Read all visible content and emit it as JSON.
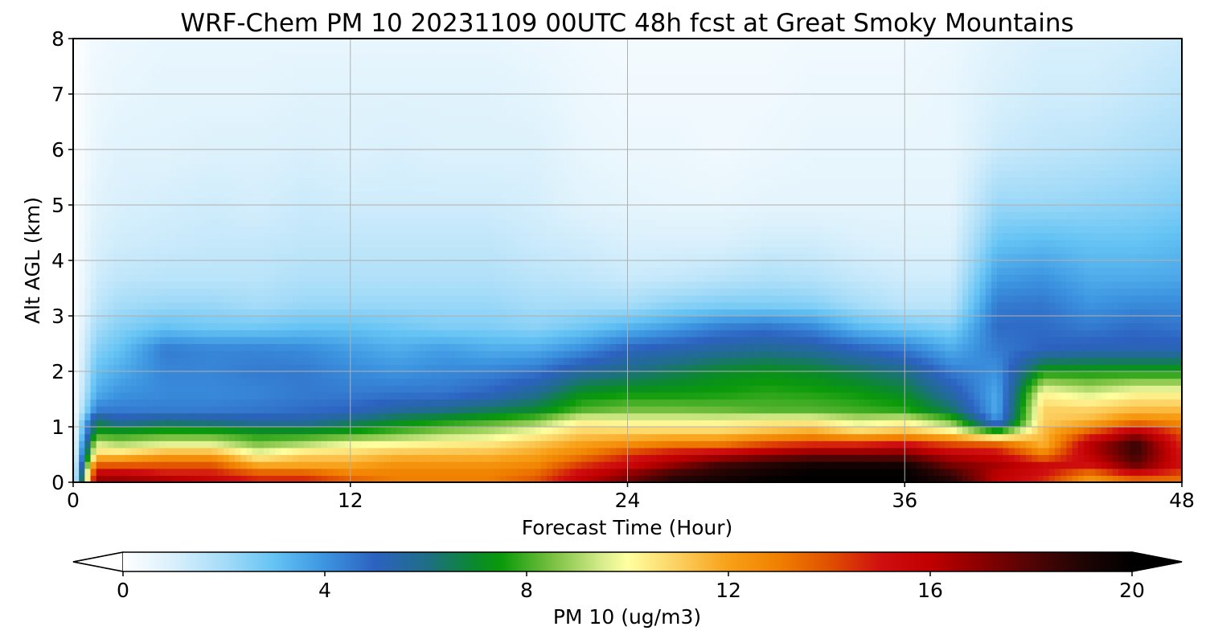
{
  "chart_data": {
    "type": "heatmap",
    "title": "WRF-Chem PM 10  20231109 00UTC 48h fcst at Great Smoky Mountains",
    "xlabel": "Forecast Time (Hour)",
    "ylabel": "Alt AGL (km)",
    "xlim": [
      0,
      48
    ],
    "ylim": [
      0,
      8
    ],
    "xticks": [
      "0",
      "12",
      "24",
      "36",
      "48"
    ],
    "yticks": [
      "0",
      "1",
      "2",
      "3",
      "4",
      "5",
      "6",
      "7",
      "8"
    ],
    "grid": true,
    "colorbar": {
      "label": "PM 10  (ug/m3)",
      "orientation": "horizontal",
      "placement": "bottom",
      "range": [
        0,
        20
      ],
      "extend": "both",
      "ticks": [
        "0",
        "4",
        "8",
        "12",
        "16",
        "20"
      ],
      "colormap_stops": [
        {
          "value": 0,
          "color": "#ffffff"
        },
        {
          "value": 1,
          "color": "#d9f0fc"
        },
        {
          "value": 2,
          "color": "#a6dcf8"
        },
        {
          "value": 3,
          "color": "#64c3f4"
        },
        {
          "value": 4,
          "color": "#3c94e0"
        },
        {
          "value": 5,
          "color": "#2c62c0"
        },
        {
          "value": 6,
          "color": "#1f6e88"
        },
        {
          "value": 7,
          "color": "#0a8a2a"
        },
        {
          "value": 7.5,
          "color": "#0a9a0a"
        },
        {
          "value": 8.5,
          "color": "#78c040"
        },
        {
          "value": 9.5,
          "color": "#d8ec8c"
        },
        {
          "value": 10,
          "color": "#ffffa0"
        },
        {
          "value": 11,
          "color": "#fcd060"
        },
        {
          "value": 12,
          "color": "#f8a018"
        },
        {
          "value": 13,
          "color": "#f08000"
        },
        {
          "value": 14,
          "color": "#e05000"
        },
        {
          "value": 15,
          "color": "#d01010"
        },
        {
          "value": 16,
          "color": "#c00000"
        },
        {
          "value": 17,
          "color": "#8a0000"
        },
        {
          "value": 18,
          "color": "#520404"
        },
        {
          "value": 19,
          "color": "#200404"
        },
        {
          "value": 20,
          "color": "#000000"
        }
      ]
    },
    "x_hours": [
      0,
      1,
      2,
      4,
      6,
      8,
      10,
      12,
      14,
      16,
      18,
      20,
      22,
      24,
      26,
      28,
      30,
      32,
      34,
      36,
      38,
      40,
      42,
      44,
      46,
      48
    ],
    "heights_km": [
      0,
      0.15,
      0.3,
      0.5,
      0.7,
      0.9,
      1.1,
      1.3,
      1.6,
      2.0,
      2.4,
      2.8,
      3.2,
      3.7,
      4.3,
      5.0,
      6.0,
      7.0,
      8.0
    ],
    "values": [
      [
        0,
        0,
        0,
        0,
        0,
        0,
        0,
        0,
        0,
        0,
        0,
        0,
        0,
        0,
        0,
        0,
        0,
        0,
        0
      ],
      [
        17,
        16,
        14,
        11,
        9.5,
        7.5,
        6.5,
        4.5,
        3.5,
        3,
        2.5,
        2,
        1.5,
        1.2,
        1,
        0.8,
        0.6,
        0.5,
        0.4
      ],
      [
        17,
        16,
        14,
        11,
        9,
        7.5,
        5.5,
        4.5,
        4,
        3.5,
        3,
        2.5,
        2,
        1.5,
        1.2,
        1,
        0.8,
        0.6,
        0.5
      ],
      [
        17,
        15,
        14,
        12,
        9.5,
        7.8,
        6,
        4.5,
        4.2,
        4.3,
        4.5,
        3,
        2.2,
        1.6,
        1.3,
        1.1,
        0.8,
        0.7,
        0.6
      ],
      [
        16,
        15,
        14,
        12,
        9.5,
        7.8,
        5.8,
        4.5,
        4.2,
        4.3,
        4.3,
        2.8,
        2.2,
        1.6,
        1.4,
        1.2,
        0.9,
        0.7,
        0.6
      ],
      [
        15,
        14,
        12,
        10,
        8.5,
        7.4,
        5.5,
        4.6,
        4.3,
        4.5,
        4.3,
        2.8,
        2,
        1.6,
        1.4,
        1.1,
        0.9,
        0.7,
        0.6
      ],
      [
        15,
        14,
        12,
        11,
        9,
        7.4,
        5.5,
        4.8,
        4.5,
        4.5,
        4.2,
        3,
        2.2,
        1.8,
        1.5,
        1.3,
        1,
        0.8,
        0.6
      ],
      [
        14,
        13,
        12,
        11,
        9.8,
        7.6,
        6.2,
        5,
        4.5,
        4.2,
        3.8,
        3,
        2.2,
        1.8,
        1.5,
        1.2,
        0.9,
        0.8,
        0.6
      ],
      [
        13,
        13,
        12.5,
        11.5,
        10,
        8.2,
        7,
        5.6,
        4.6,
        4,
        3.5,
        2.8,
        2.2,
        1.8,
        1.5,
        1.2,
        1,
        0.8,
        0.6
      ],
      [
        13,
        13,
        12.5,
        11.5,
        10.3,
        8.8,
        7.5,
        6,
        4.6,
        4.2,
        3.8,
        2.6,
        2.2,
        1.8,
        1.5,
        1.2,
        0.9,
        0.8,
        0.6
      ],
      [
        13,
        13,
        12.5,
        11.5,
        10.5,
        9.2,
        8,
        6.5,
        5,
        4.3,
        3.5,
        2.6,
        2.2,
        1.8,
        1.5,
        1.2,
        0.9,
        0.8,
        0.6
      ],
      [
        14,
        13.5,
        12.8,
        12,
        11.2,
        10,
        8.6,
        7,
        5.8,
        4.6,
        3.5,
        2.4,
        2,
        1.6,
        1.3,
        1.1,
        0.9,
        0.7,
        0.5
      ],
      [
        16,
        15.5,
        14.5,
        13,
        12,
        11,
        10.2,
        8.2,
        7.2,
        5.6,
        4.1,
        2.8,
        2,
        1.5,
        1.2,
        0.8,
        0.6,
        0.5,
        0.4
      ],
      [
        17.5,
        17,
        15.5,
        14.5,
        12.5,
        11,
        10,
        8.5,
        7.5,
        6,
        5,
        3.3,
        2,
        1.3,
        1,
        0.7,
        0.5,
        0.4,
        0.3
      ],
      [
        19,
        18.5,
        17,
        15.5,
        13,
        11,
        10,
        8.5,
        7.5,
        6.5,
        5.3,
        3.8,
        2.4,
        1.4,
        1,
        0.6,
        0.5,
        0.4,
        0.3
      ],
      [
        19.5,
        19,
        18.5,
        16,
        13,
        11,
        10,
        8.4,
        7.6,
        7,
        5.6,
        4.4,
        2.6,
        1.6,
        1,
        0.6,
        0.4,
        0.4,
        0.3
      ],
      [
        20,
        19.5,
        19,
        17,
        14,
        11.5,
        10.3,
        8.2,
        7.8,
        7.2,
        5.8,
        4.6,
        2.6,
        1.8,
        1.2,
        0.7,
        0.5,
        0.4,
        0.3
      ],
      [
        20,
        20,
        19.5,
        17.5,
        14.5,
        12,
        10.3,
        8.2,
        7.7,
        7,
        5.6,
        4.2,
        2.5,
        1.7,
        1.2,
        0.7,
        0.6,
        0.5,
        0.4
      ],
      [
        20,
        20,
        19.5,
        17.5,
        14.5,
        11,
        9.5,
        8,
        7.5,
        6.5,
        5,
        3.2,
        2,
        1.4,
        1,
        0.7,
        0.6,
        0.5,
        0.4
      ],
      [
        20,
        20,
        19.5,
        17.5,
        15,
        11.5,
        10,
        7.8,
        7,
        6,
        4.5,
        2.8,
        1.6,
        1.2,
        0.9,
        0.7,
        0.6,
        0.5,
        0.4
      ],
      [
        19,
        18.5,
        17.5,
        16,
        14,
        10.5,
        8.5,
        6.5,
        5.5,
        4.5,
        3.5,
        2.5,
        1.6,
        1.2,
        0.9,
        0.7,
        0.6,
        0.6,
        0.5
      ],
      [
        16,
        16,
        16.5,
        15.5,
        13.5,
        8,
        4,
        3.5,
        3.5,
        4,
        4.5,
        4.8,
        4.5,
        3.8,
        3,
        2.2,
        1.3,
        1,
        0.8
      ],
      [
        14.5,
        15,
        15.5,
        13,
        11.5,
        11.5,
        11,
        11,
        10.2,
        7.5,
        5,
        4.8,
        4.6,
        4,
        3.2,
        2.2,
        1.5,
        1.2,
        1
      ],
      [
        12,
        13,
        15,
        16,
        16,
        14,
        11.5,
        11,
        9.5,
        7.5,
        5.2,
        4.5,
        4,
        3.5,
        3,
        2.3,
        1.6,
        1.2,
        1
      ],
      [
        13,
        15,
        17.5,
        18.5,
        18.5,
        16.5,
        13,
        11.5,
        10.2,
        7.5,
        5.2,
        4.8,
        4.2,
        3.5,
        3,
        2.4,
        1.8,
        1.4,
        1.1
      ],
      [
        13,
        14,
        15,
        15,
        14.5,
        14,
        12.5,
        11.5,
        10.2,
        7.5,
        5.2,
        4.6,
        4.2,
        3.6,
        3.2,
        2.6,
        2,
        1.6,
        1.3
      ]
    ]
  }
}
